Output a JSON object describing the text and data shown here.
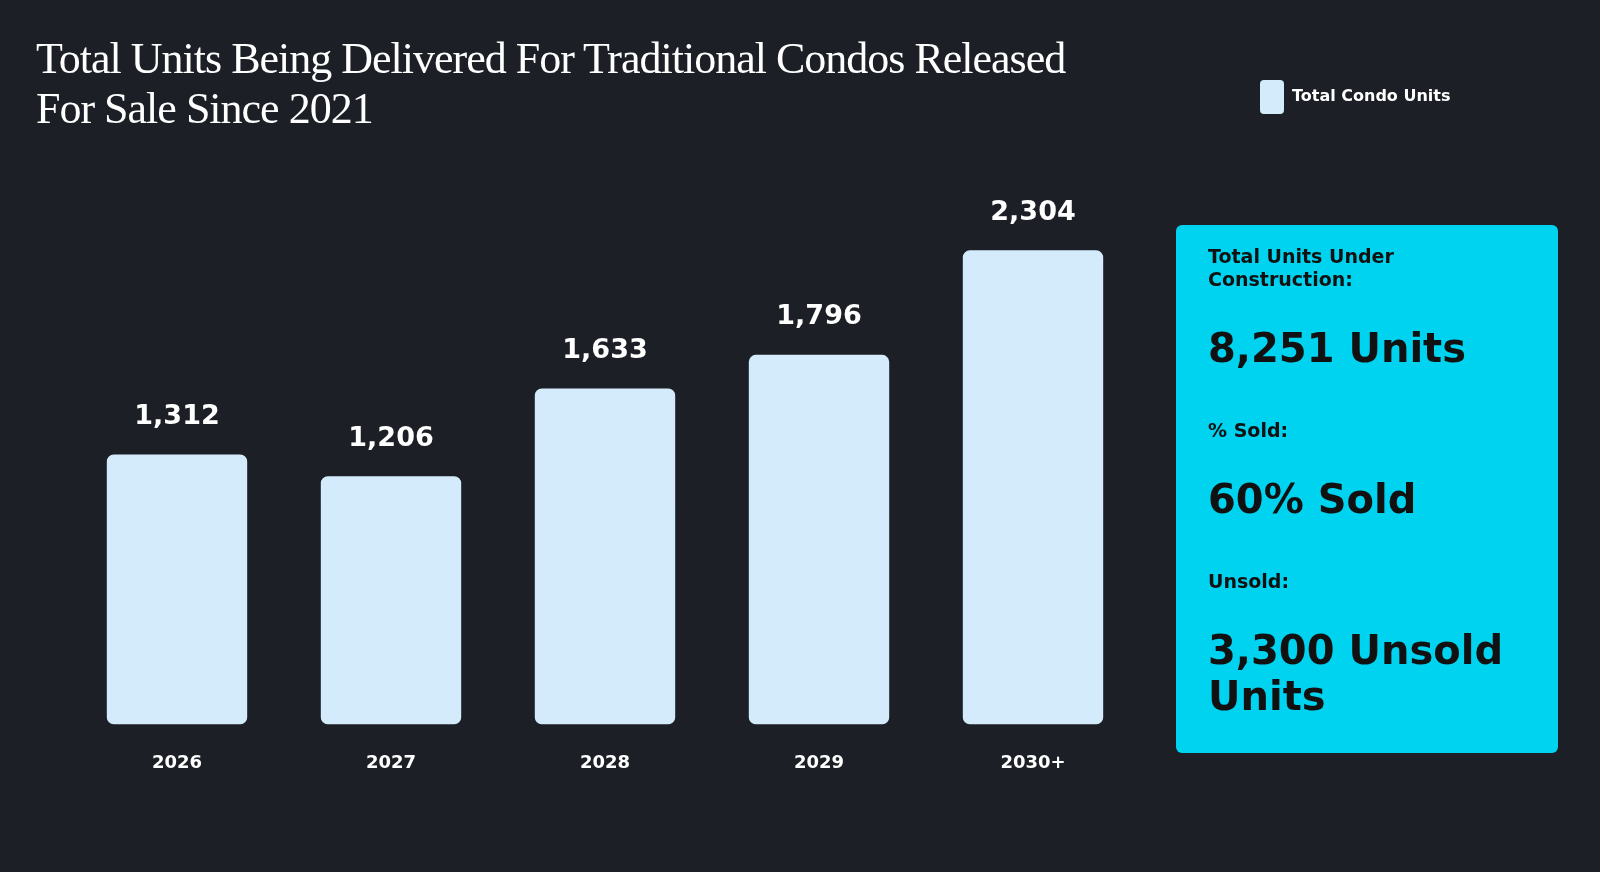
{
  "chart_data": [
    {
      "type": "bar",
      "title": "Total Units Being Delivered For Traditional Condos Released For Sale Since 2021",
      "categories": [
        "2026",
        "2027",
        "2028",
        "2029",
        "2030+"
      ],
      "series": [
        {
          "name": "Total Condo Units",
          "color": "#d4ebfb",
          "values": [
            1312,
            1206,
            1633,
            1796,
            2304
          ],
          "value_labels": [
            "1,312",
            "1,206",
            "1,633",
            "1,796",
            "2,304"
          ]
        }
      ],
      "legend": "top right",
      "grid": false,
      "tick_labels": "x"
    },
    {
      "type": "other",
      "annotations": [
        "Total Units Under Construction:",
        "8,251 Units",
        "% Sold:",
        "60% Sold",
        "Unsold:",
        "3,300 Unsold Units"
      ]
    }
  ]
}
